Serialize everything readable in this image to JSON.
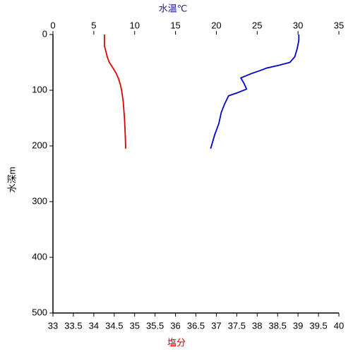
{
  "chart_data": {
    "type": "line",
    "top_axis_label": "水温℃",
    "bottom_axis_label": "塩分",
    "y_axis_label": "水深m",
    "ylim": [
      0,
      500
    ],
    "yticks": [
      0,
      100,
      200,
      300,
      400,
      500
    ],
    "y_inverted": true,
    "x_top_lim": [
      0,
      35
    ],
    "x_top_ticks": [
      0,
      5,
      10,
      15,
      20,
      25,
      30,
      35
    ],
    "xlim": [
      33,
      40
    ],
    "xticks": [
      33,
      33.5,
      34,
      34.5,
      35,
      35.5,
      36,
      36.5,
      37,
      37.5,
      38,
      38.5,
      39,
      39.5,
      40
    ],
    "top_label_color": "#1a1aa0",
    "bottom_label_color": "#cc0000",
    "series": [
      {
        "color": "#0000cc",
        "axis": "top",
        "depth": [
          0,
          10,
          25,
          40,
          50,
          55,
          60,
          65,
          70,
          78,
          88,
          98,
          105,
          110,
          125,
          140,
          160,
          180,
          200,
          205
        ],
        "values": [
          30.1,
          30.1,
          29.9,
          29.6,
          29.0,
          27.7,
          26.2,
          25.3,
          24.3,
          23.0,
          23.4,
          23.7,
          22.5,
          21.5,
          21.0,
          20.6,
          20.3,
          19.8,
          19.4,
          19.3
        ]
      },
      {
        "color": "#dd0000",
        "axis": "bottom",
        "depth": [
          0,
          20,
          40,
          50,
          60,
          70,
          80,
          90,
          100,
          120,
          150,
          180,
          205
        ],
        "values": [
          34.26,
          34.26,
          34.33,
          34.38,
          34.47,
          34.55,
          34.61,
          34.65,
          34.68,
          34.72,
          34.75,
          34.77,
          34.78
        ]
      }
    ]
  }
}
